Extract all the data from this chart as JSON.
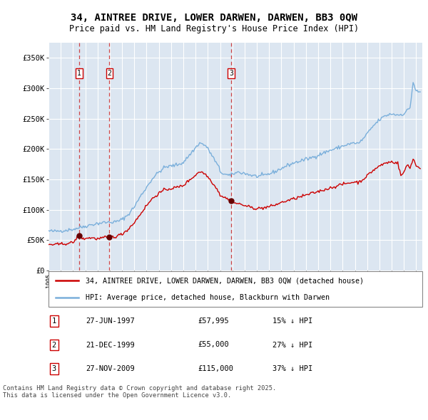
{
  "title_line1": "34, AINTREE DRIVE, LOWER DARWEN, DARWEN, BB3 0QW",
  "title_line2": "Price paid vs. HM Land Registry's House Price Index (HPI)",
  "ytick_values": [
    0,
    50000,
    100000,
    150000,
    200000,
    250000,
    300000,
    350000
  ],
  "ylim": [
    0,
    375000
  ],
  "xlim_start": 1995.0,
  "xlim_end": 2025.5,
  "background_color": "#dce6f1",
  "grid_color": "#ffffff",
  "red_line_color": "#cc0000",
  "blue_line_color": "#7aafdb",
  "sale_marker_color": "#660000",
  "dashed_line_color": "#cc3333",
  "legend_label_red": "34, AINTREE DRIVE, LOWER DARWEN, DARWEN, BB3 0QW (detached house)",
  "legend_label_blue": "HPI: Average price, detached house, Blackburn with Darwen",
  "sales": [
    {
      "num": 1,
      "date_label": "27-JUN-1997",
      "price": 57995,
      "year": 1997.49,
      "price_label": "£57,995",
      "pct_label": "15% ↓ HPI"
    },
    {
      "num": 2,
      "date_label": "21-DEC-1999",
      "price": 55000,
      "year": 1999.97,
      "price_label": "£55,000",
      "pct_label": "27% ↓ HPI"
    },
    {
      "num": 3,
      "date_label": "27-NOV-2009",
      "price": 115000,
      "year": 2009.91,
      "price_label": "£115,000",
      "pct_label": "37% ↓ HPI"
    }
  ],
  "footer_text": "Contains HM Land Registry data © Crown copyright and database right 2025.\nThis data is licensed under the Open Government Licence v3.0."
}
